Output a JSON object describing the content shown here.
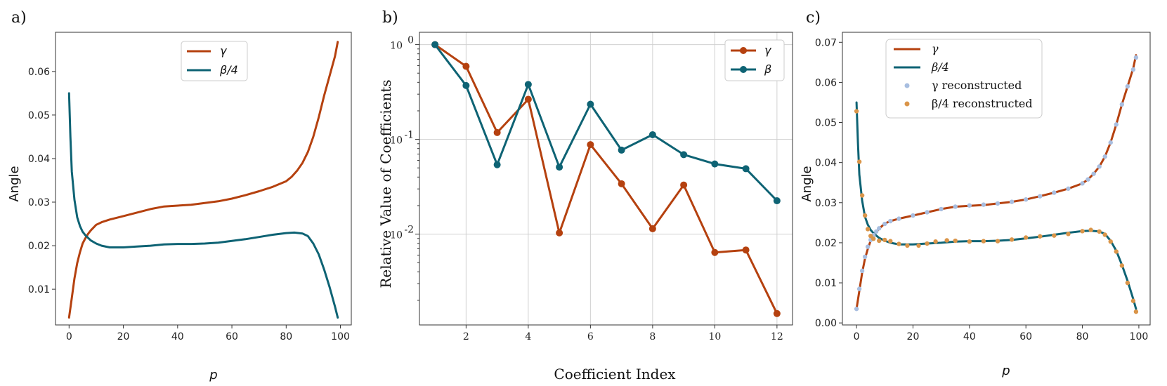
{
  "colors": {
    "gamma": "#B5410F",
    "beta": "#0E6374",
    "gamma_recon": "#A8BEE0",
    "beta_recon": "#DA9549"
  },
  "chart_data": [
    {
      "panel_label": "a)",
      "type": "line",
      "xlabel": "p",
      "ylabel": "Angle",
      "xlim": [
        -5,
        104
      ],
      "ylim": [
        0.0018,
        0.069
      ],
      "xticks": [
        0,
        20,
        40,
        60,
        80,
        100
      ],
      "xtick_labels": [
        "0",
        "20",
        "40",
        "60",
        "80",
        "100"
      ],
      "yticks": [
        0.01,
        0.02,
        0.03,
        0.04,
        0.05,
        0.06
      ],
      "ytick_labels": [
        "0.01",
        "0.02",
        "0.03",
        "0.04",
        "0.05",
        "0.06"
      ],
      "legend": [
        "γ",
        "β/4"
      ],
      "legend_position": "upper-center",
      "series": [
        {
          "name": "γ",
          "color_key": "gamma",
          "x": [
            0,
            1,
            2,
            3,
            4,
            5,
            6,
            7,
            8,
            10,
            12,
            15,
            20,
            25,
            30,
            35,
            40,
            45,
            50,
            55,
            60,
            65,
            70,
            75,
            80,
            82,
            84,
            86,
            88,
            90,
            92,
            94,
            96,
            98,
            99
          ],
          "y": [
            0.0035,
            0.008,
            0.0125,
            0.016,
            0.0185,
            0.0205,
            0.0217,
            0.0227,
            0.0235,
            0.0248,
            0.0254,
            0.026,
            0.0268,
            0.0276,
            0.0284,
            0.029,
            0.0292,
            0.0294,
            0.0298,
            0.0302,
            0.0308,
            0.0316,
            0.0325,
            0.0335,
            0.0348,
            0.0358,
            0.0372,
            0.039,
            0.0415,
            0.045,
            0.0495,
            0.0545,
            0.059,
            0.0635,
            0.0668
          ]
        },
        {
          "name": "β/4",
          "color_key": "beta",
          "x": [
            0,
            0.5,
            1,
            2,
            3,
            4,
            5,
            6,
            8,
            10,
            12,
            15,
            20,
            25,
            30,
            35,
            40,
            45,
            50,
            55,
            60,
            65,
            70,
            75,
            80,
            83,
            86,
            88,
            90,
            92,
            94,
            96,
            98,
            99
          ],
          "y": [
            0.055,
            0.045,
            0.037,
            0.0305,
            0.0265,
            0.0245,
            0.0232,
            0.0224,
            0.0212,
            0.0205,
            0.02,
            0.0196,
            0.0196,
            0.0198,
            0.02,
            0.0203,
            0.0204,
            0.0204,
            0.0205,
            0.0207,
            0.0211,
            0.0215,
            0.022,
            0.0225,
            0.0229,
            0.023,
            0.0228,
            0.0222,
            0.0205,
            0.018,
            0.0145,
            0.0105,
            0.006,
            0.0035
          ]
        }
      ]
    },
    {
      "panel_label": "b)",
      "type": "line",
      "yscale": "log",
      "xlabel": "Coefficient Index",
      "ylabel": "Relative Value of Coefficients",
      "xlim": [
        0.5,
        12.5
      ],
      "ylim": [
        0.0011,
        1.35
      ],
      "xticks": [
        2,
        4,
        6,
        8,
        10,
        12
      ],
      "xtick_labels": [
        "2",
        "4",
        "6",
        "8",
        "10",
        "12"
      ],
      "yticks": [
        0.01,
        0.1,
        1
      ],
      "ytick_labels": [
        "10",
        "10",
        "10"
      ],
      "ytick_exponents": [
        "-2",
        "-1",
        "0"
      ],
      "legend": [
        "γ",
        "β"
      ],
      "legend_position": "upper-right",
      "categories": [
        1,
        2,
        3,
        4,
        5,
        6,
        7,
        8,
        9,
        10,
        11,
        12
      ],
      "series": [
        {
          "name": "γ",
          "color_key": "gamma",
          "values": [
            1.0,
            0.59,
            0.118,
            0.265,
            0.0103,
            0.088,
            0.034,
            0.0114,
            0.033,
            0.0064,
            0.0068,
            0.00145
          ]
        },
        {
          "name": "β",
          "color_key": "beta",
          "values": [
            1.0,
            0.37,
            0.054,
            0.38,
            0.051,
            0.235,
            0.077,
            0.112,
            0.069,
            0.055,
            0.049,
            0.0225
          ]
        }
      ]
    },
    {
      "panel_label": "c)",
      "type": "line",
      "xlabel": "p",
      "ylabel": "Angle",
      "xlim": [
        -5,
        104
      ],
      "ylim": [
        -0.0005,
        0.0725
      ],
      "xticks": [
        0,
        20,
        40,
        60,
        80,
        100
      ],
      "xtick_labels": [
        "0",
        "20",
        "40",
        "60",
        "80",
        "100"
      ],
      "yticks": [
        0.0,
        0.01,
        0.02,
        0.03,
        0.04,
        0.05,
        0.06,
        0.07
      ],
      "ytick_labels": [
        "0.00",
        "0.01",
        "0.02",
        "0.03",
        "0.04",
        "0.05",
        "0.06",
        "0.07"
      ],
      "legend": [
        "γ",
        "β/4",
        "γ reconstructed",
        "β/4 reconstructed"
      ],
      "legend_position": "upper-left",
      "series": [
        {
          "name": "γ",
          "color_key": "gamma",
          "kind": "line",
          "x": [
            0,
            1,
            2,
            3,
            4,
            5,
            6,
            7,
            8,
            10,
            12,
            15,
            20,
            25,
            30,
            35,
            40,
            45,
            50,
            55,
            60,
            65,
            70,
            75,
            80,
            82,
            84,
            86,
            88,
            90,
            92,
            94,
            96,
            98,
            99
          ],
          "y": [
            0.0035,
            0.008,
            0.0125,
            0.016,
            0.0185,
            0.0205,
            0.0217,
            0.0227,
            0.0235,
            0.0248,
            0.0254,
            0.026,
            0.0268,
            0.0276,
            0.0284,
            0.029,
            0.0292,
            0.0294,
            0.0298,
            0.0302,
            0.0308,
            0.0316,
            0.0325,
            0.0335,
            0.0348,
            0.0358,
            0.0372,
            0.039,
            0.0415,
            0.045,
            0.0495,
            0.0545,
            0.059,
            0.0635,
            0.0668
          ]
        },
        {
          "name": "β/4",
          "color_key": "beta",
          "kind": "line",
          "x": [
            0,
            0.5,
            1,
            2,
            3,
            4,
            5,
            6,
            8,
            10,
            12,
            15,
            20,
            25,
            30,
            35,
            40,
            45,
            50,
            55,
            60,
            65,
            70,
            75,
            80,
            83,
            86,
            88,
            90,
            92,
            94,
            96,
            98,
            99
          ],
          "y": [
            0.055,
            0.045,
            0.037,
            0.0305,
            0.0265,
            0.0245,
            0.0232,
            0.0224,
            0.0212,
            0.0205,
            0.02,
            0.0196,
            0.0196,
            0.0198,
            0.02,
            0.0203,
            0.0204,
            0.0204,
            0.0205,
            0.0207,
            0.0211,
            0.0215,
            0.022,
            0.0225,
            0.0229,
            0.023,
            0.0228,
            0.0222,
            0.0205,
            0.018,
            0.0145,
            0.0105,
            0.006,
            0.0035
          ]
        },
        {
          "name": "γ reconstructed",
          "color_key": "gamma_recon",
          "kind": "points",
          "x": [
            0,
            1,
            2,
            3,
            4,
            5,
            6,
            7,
            8,
            10,
            12,
            15,
            20,
            25,
            30,
            35,
            40,
            45,
            50,
            55,
            60,
            65,
            70,
            75,
            80,
            82,
            84,
            86,
            88,
            90,
            92,
            94,
            96,
            98,
            99
          ],
          "y": [
            0.0035,
            0.0085,
            0.013,
            0.0165,
            0.019,
            0.0207,
            0.0219,
            0.0228,
            0.0236,
            0.0247,
            0.0254,
            0.026,
            0.0268,
            0.0276,
            0.0284,
            0.029,
            0.0293,
            0.0295,
            0.0298,
            0.0302,
            0.0308,
            0.0316,
            0.0325,
            0.0335,
            0.0348,
            0.0358,
            0.0372,
            0.039,
            0.0415,
            0.045,
            0.0495,
            0.0545,
            0.059,
            0.0632,
            0.0662
          ]
        },
        {
          "name": "β/4 reconstructed",
          "color_key": "beta_recon",
          "kind": "points",
          "x": [
            0,
            1,
            2,
            3,
            4,
            5,
            6,
            8,
            10,
            12,
            15,
            18,
            22,
            25,
            28,
            32,
            35,
            40,
            45,
            50,
            55,
            60,
            65,
            70,
            75,
            80,
            83,
            86,
            88,
            90,
            92,
            94,
            96,
            98,
            99
          ],
          "y": [
            0.0528,
            0.0402,
            0.0318,
            0.0268,
            0.0234,
            0.0217,
            0.021,
            0.0205,
            0.0207,
            0.0204,
            0.0197,
            0.0193,
            0.0193,
            0.0198,
            0.0203,
            0.0206,
            0.0205,
            0.0203,
            0.0204,
            0.0204,
            0.0208,
            0.0213,
            0.0216,
            0.0218,
            0.0222,
            0.0229,
            0.0232,
            0.0228,
            0.022,
            0.0203,
            0.0178,
            0.0143,
            0.01,
            0.0055,
            0.0028
          ]
        }
      ]
    }
  ]
}
